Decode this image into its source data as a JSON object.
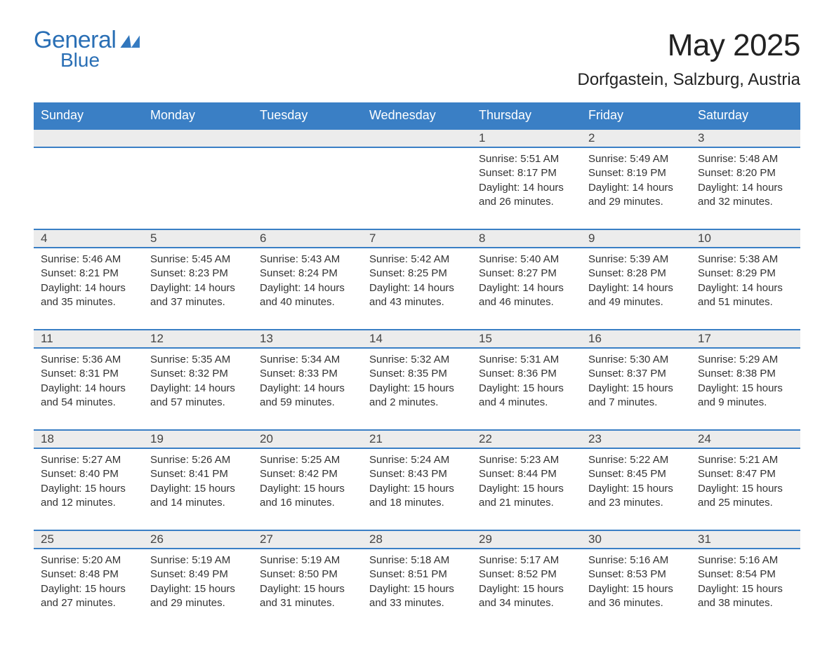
{
  "brand": {
    "word1": "General",
    "word2": "Blue"
  },
  "title": "May 2025",
  "location": "Dorfgastein, Salzburg, Austria",
  "colors": {
    "header_bg": "#3a7fc5",
    "header_text": "#ffffff",
    "daynum_bg": "#ececec",
    "border": "#3a7fc5",
    "brand": "#2a6fb5",
    "body_text": "#333333",
    "page_bg": "#ffffff"
  },
  "typography": {
    "title_fontsize": 44,
    "location_fontsize": 24,
    "header_fontsize": 18,
    "daynum_fontsize": 17,
    "body_fontsize": 15,
    "font_family": "Arial"
  },
  "layout": {
    "columns": 7,
    "rows": 5,
    "first_weekday_index": 4,
    "days_in_month": 31
  },
  "weekdays": [
    "Sunday",
    "Monday",
    "Tuesday",
    "Wednesday",
    "Thursday",
    "Friday",
    "Saturday"
  ],
  "days": [
    {
      "n": 1,
      "sunrise": "5:51 AM",
      "sunset": "8:17 PM",
      "dl_h": 14,
      "dl_m": 26
    },
    {
      "n": 2,
      "sunrise": "5:49 AM",
      "sunset": "8:19 PM",
      "dl_h": 14,
      "dl_m": 29
    },
    {
      "n": 3,
      "sunrise": "5:48 AM",
      "sunset": "8:20 PM",
      "dl_h": 14,
      "dl_m": 32
    },
    {
      "n": 4,
      "sunrise": "5:46 AM",
      "sunset": "8:21 PM",
      "dl_h": 14,
      "dl_m": 35
    },
    {
      "n": 5,
      "sunrise": "5:45 AM",
      "sunset": "8:23 PM",
      "dl_h": 14,
      "dl_m": 37
    },
    {
      "n": 6,
      "sunrise": "5:43 AM",
      "sunset": "8:24 PM",
      "dl_h": 14,
      "dl_m": 40
    },
    {
      "n": 7,
      "sunrise": "5:42 AM",
      "sunset": "8:25 PM",
      "dl_h": 14,
      "dl_m": 43
    },
    {
      "n": 8,
      "sunrise": "5:40 AM",
      "sunset": "8:27 PM",
      "dl_h": 14,
      "dl_m": 46
    },
    {
      "n": 9,
      "sunrise": "5:39 AM",
      "sunset": "8:28 PM",
      "dl_h": 14,
      "dl_m": 49
    },
    {
      "n": 10,
      "sunrise": "5:38 AM",
      "sunset": "8:29 PM",
      "dl_h": 14,
      "dl_m": 51
    },
    {
      "n": 11,
      "sunrise": "5:36 AM",
      "sunset": "8:31 PM",
      "dl_h": 14,
      "dl_m": 54
    },
    {
      "n": 12,
      "sunrise": "5:35 AM",
      "sunset": "8:32 PM",
      "dl_h": 14,
      "dl_m": 57
    },
    {
      "n": 13,
      "sunrise": "5:34 AM",
      "sunset": "8:33 PM",
      "dl_h": 14,
      "dl_m": 59
    },
    {
      "n": 14,
      "sunrise": "5:32 AM",
      "sunset": "8:35 PM",
      "dl_h": 15,
      "dl_m": 2
    },
    {
      "n": 15,
      "sunrise": "5:31 AM",
      "sunset": "8:36 PM",
      "dl_h": 15,
      "dl_m": 4
    },
    {
      "n": 16,
      "sunrise": "5:30 AM",
      "sunset": "8:37 PM",
      "dl_h": 15,
      "dl_m": 7
    },
    {
      "n": 17,
      "sunrise": "5:29 AM",
      "sunset": "8:38 PM",
      "dl_h": 15,
      "dl_m": 9
    },
    {
      "n": 18,
      "sunrise": "5:27 AM",
      "sunset": "8:40 PM",
      "dl_h": 15,
      "dl_m": 12
    },
    {
      "n": 19,
      "sunrise": "5:26 AM",
      "sunset": "8:41 PM",
      "dl_h": 15,
      "dl_m": 14
    },
    {
      "n": 20,
      "sunrise": "5:25 AM",
      "sunset": "8:42 PM",
      "dl_h": 15,
      "dl_m": 16
    },
    {
      "n": 21,
      "sunrise": "5:24 AM",
      "sunset": "8:43 PM",
      "dl_h": 15,
      "dl_m": 18
    },
    {
      "n": 22,
      "sunrise": "5:23 AM",
      "sunset": "8:44 PM",
      "dl_h": 15,
      "dl_m": 21
    },
    {
      "n": 23,
      "sunrise": "5:22 AM",
      "sunset": "8:45 PM",
      "dl_h": 15,
      "dl_m": 23
    },
    {
      "n": 24,
      "sunrise": "5:21 AM",
      "sunset": "8:47 PM",
      "dl_h": 15,
      "dl_m": 25
    },
    {
      "n": 25,
      "sunrise": "5:20 AM",
      "sunset": "8:48 PM",
      "dl_h": 15,
      "dl_m": 27
    },
    {
      "n": 26,
      "sunrise": "5:19 AM",
      "sunset": "8:49 PM",
      "dl_h": 15,
      "dl_m": 29
    },
    {
      "n": 27,
      "sunrise": "5:19 AM",
      "sunset": "8:50 PM",
      "dl_h": 15,
      "dl_m": 31
    },
    {
      "n": 28,
      "sunrise": "5:18 AM",
      "sunset": "8:51 PM",
      "dl_h": 15,
      "dl_m": 33
    },
    {
      "n": 29,
      "sunrise": "5:17 AM",
      "sunset": "8:52 PM",
      "dl_h": 15,
      "dl_m": 34
    },
    {
      "n": 30,
      "sunrise": "5:16 AM",
      "sunset": "8:53 PM",
      "dl_h": 15,
      "dl_m": 36
    },
    {
      "n": 31,
      "sunrise": "5:16 AM",
      "sunset": "8:54 PM",
      "dl_h": 15,
      "dl_m": 38
    }
  ],
  "labels": {
    "sunrise": "Sunrise:",
    "sunset": "Sunset:",
    "daylight_prefix": "Daylight:",
    "hours_word": "hours",
    "and_word": "and",
    "minutes_word": "minutes."
  }
}
